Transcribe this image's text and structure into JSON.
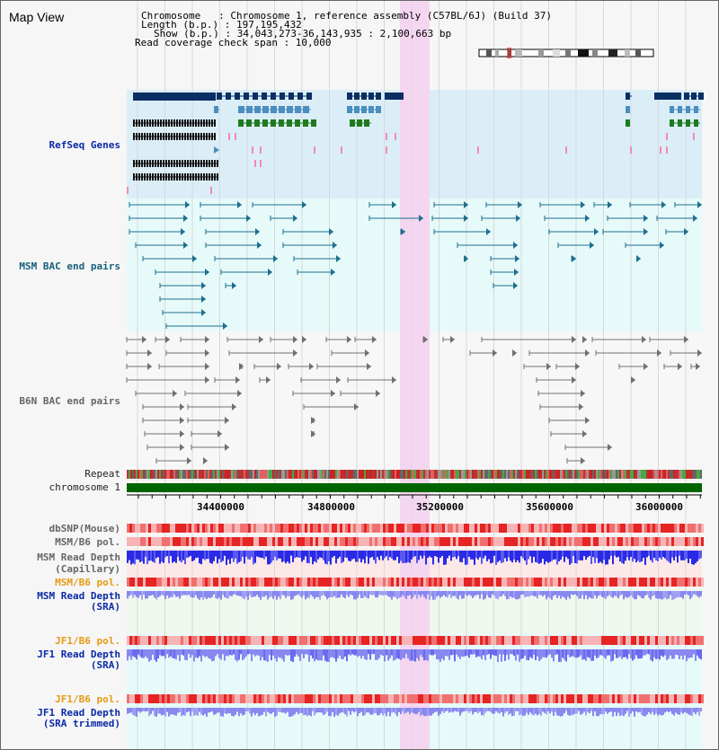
{
  "map_title": "Map View",
  "info": {
    "line1": "Chromosome   : Chromosome 1, reference assembly (C57BL/6J) (Build 37)",
    "line2": "Length (b.p.) : 197,195,432",
    "line3": "Show (b.p.) : 34,043,273-36,143,935 : 2,100,663 bp",
    "line4": "Read coverage check span : 10,000"
  },
  "track_labels": {
    "refseq": "RefSeq Genes",
    "msm_bac": "MSM BAC end pairs",
    "b6n_bac": "B6N BAC end pairs",
    "repeat": "Repeat",
    "chromosome": "chromosome 1",
    "dbsnp": "dbSNP(Mouse)",
    "msm_b6_pol_1": "MSM/B6 pol.",
    "msm_depth_cap_1": "MSM Read Depth",
    "msm_depth_cap_2": "(Capillary)",
    "msm_b6_pol_2": "MSM/B6 pol.",
    "msm_depth_sra_1": "MSM Read Depth",
    "msm_depth_sra_2": "(SRA)",
    "jf1_b6_pol_1": "JF1/B6 pol.",
    "jf1_depth_sra_1": "JF1 Read Depth",
    "jf1_depth_sra_2": "(SRA)",
    "jf1_b6_pol_2": "JF1/B6 pol.",
    "jf1_depth_trim_1": "JF1 Read Depth",
    "jf1_depth_trim_2": "(SRA trimmed)"
  },
  "axis_ticks": [
    "34400000",
    "34800000",
    "35200000",
    "35600000",
    "36000000"
  ],
  "colors": {
    "refseq_bg": "#dbeef8",
    "msm_bg": "#e6fafa",
    "highlight": "#f5d6f0",
    "dark_gene": "#0a2f63",
    "mid_gene": "#4a8fbd",
    "green_gene": "#1f7a1f",
    "msm_pair": "#1f6f8f",
    "b6n_pair": "#707070",
    "chromosome_bar": "#006400",
    "depth_blue": "#2a2ae6",
    "depth_light": "#8888f0",
    "pol_red": "#e83030"
  }
}
